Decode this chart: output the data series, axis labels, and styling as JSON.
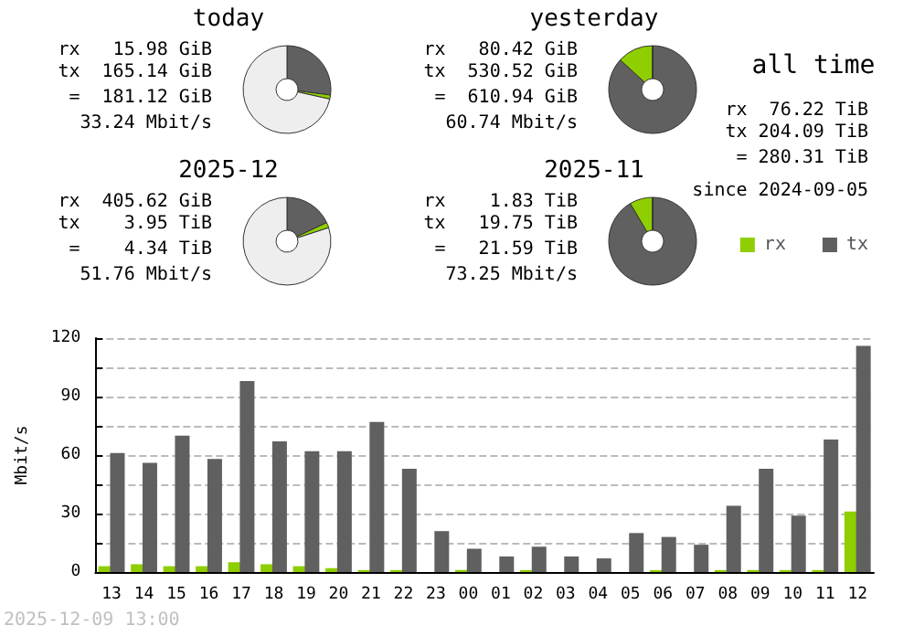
{
  "chart_data": [
    {
      "type": "donut",
      "title": "today",
      "categories": [
        null,
        null,
        null
      ],
      "values": [
        27,
        1.5,
        71.5
      ],
      "colors": [
        "#606060",
        "#8fce00",
        "#eeeeee"
      ],
      "annotations": [
        "rx   15.98 GiB",
        "tx  165.14 GiB",
        " =  181.12 GiB",
        "33.24 Mbit/s"
      ]
    },
    {
      "type": "donut",
      "title": "yesterday",
      "categories": [
        null,
        null,
        null
      ],
      "values": [
        86.8,
        13.2,
        0
      ],
      "colors": [
        "#606060",
        "#8fce00",
        "#eeeeee"
      ],
      "annotations": [
        "rx   80.42 GiB",
        "tx  530.52 GiB",
        " =  610.94 GiB",
        "60.74 Mbit/s"
      ]
    },
    {
      "type": "donut",
      "title": "2025-12",
      "categories": [
        null,
        null,
        null
      ],
      "values": [
        18,
        2,
        80
      ],
      "colors": [
        "#606060",
        "#8fce00",
        "#eeeeee"
      ],
      "annotations": [
        "rx  405.62 GiB",
        "tx    3.95 TiB",
        " =    4.34 TiB",
        "51.76 Mbit/s"
      ]
    },
    {
      "type": "donut",
      "title": "2025-11",
      "categories": [
        null,
        null,
        null
      ],
      "values": [
        91.5,
        8.5,
        0
      ],
      "colors": [
        "#606060",
        "#8fce00",
        "#eeeeee"
      ],
      "annotations": [
        "rx    1.83 TiB",
        "tx   19.75 TiB",
        " =   21.59 TiB",
        "73.25 Mbit/s"
      ]
    },
    {
      "type": "other",
      "title": "all time",
      "annotations": [
        "rx  76.22 TiB",
        "tx 204.09 TiB",
        " = 280.31 TiB",
        "since 2024-09-05"
      ]
    },
    {
      "type": "bar",
      "ylabel": "Mbit/s",
      "categories": [
        "13",
        "14",
        "15",
        "16",
        "17",
        "18",
        "19",
        "20",
        "21",
        "22",
        "23",
        "00",
        "01",
        "02",
        "03",
        "04",
        "05",
        "06",
        "07",
        "08",
        "09",
        "10",
        "11",
        "12"
      ],
      "series": [
        {
          "name": "rx",
          "color": "#8fce00",
          "values": [
            3,
            4,
            3,
            3,
            5,
            4,
            3,
            2,
            1,
            1,
            0,
            1,
            0,
            1,
            0,
            0,
            0,
            1,
            0,
            1,
            1,
            1,
            1,
            31
          ]
        },
        {
          "name": "tx",
          "color": "#606060",
          "values": [
            61,
            56,
            70,
            58,
            98,
            67,
            62,
            62,
            77,
            53,
            21,
            12,
            8,
            13,
            8,
            7,
            20,
            18,
            14,
            34,
            53,
            29,
            68,
            116
          ]
        }
      ],
      "ylim": [
        0,
        120
      ],
      "yticks": [
        0,
        {
          "value": 15,
          "label": null
        },
        30,
        {
          "value": 45,
          "label": null
        },
        60,
        {
          "value": 75,
          "label": null
        },
        90,
        {
          "value": 105,
          "label": null
        },
        120
      ],
      "grid": "y",
      "legend": "top right",
      "annotations": [
        "2025-12-09 13:00"
      ]
    }
  ]
}
